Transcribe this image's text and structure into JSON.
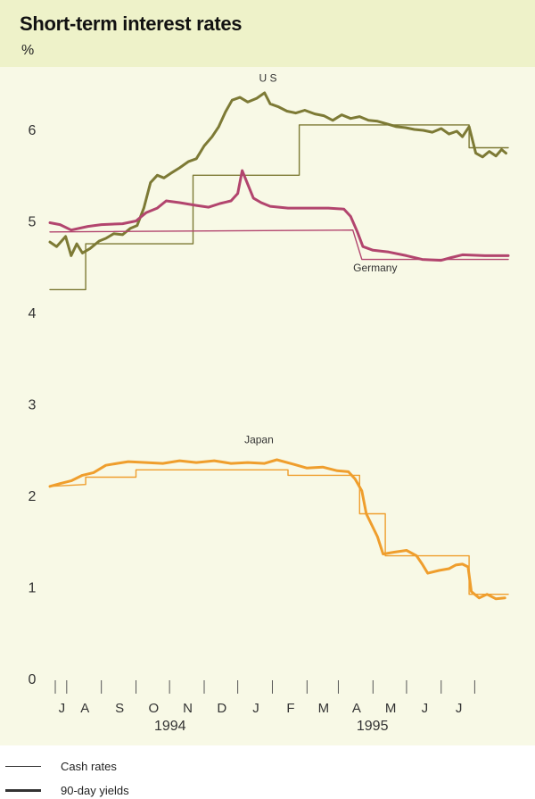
{
  "header": {
    "title": "Short-term interest rates",
    "unit": "%"
  },
  "legend": [
    {
      "label": "Cash rates",
      "style": "thin"
    },
    {
      "label": "90-day  yields",
      "style": "thick"
    }
  ],
  "colors": {
    "us": "#7d7a35",
    "germany": "#b2456e",
    "japan": "#ef9e2d",
    "axis": "#555555",
    "legend": "#333333",
    "band": "#eef2c9",
    "panel": "#f8f9e6"
  },
  "chart_data": {
    "type": "line",
    "title": "Short-term interest rates",
    "ylabel": "%",
    "ylim": [
      0,
      6.5
    ],
    "yticks": [
      "0",
      "1",
      "2",
      "3",
      "4",
      "5",
      "6"
    ],
    "xlim": [
      "1994-06-16",
      "1995-07-31"
    ],
    "month_ticks": [
      "J",
      "A",
      "S",
      "O",
      "N",
      "D",
      "J",
      "F",
      "M",
      "A",
      "M",
      "J",
      "J"
    ],
    "year_labels": [
      "1994",
      "1995"
    ],
    "series": [
      {
        "name": "US",
        "kind": "90-day yields",
        "color": "#7d7a35",
        "points": [
          [
            "1994-06-16",
            4.77
          ],
          [
            "1994-06-22",
            4.72
          ],
          [
            "1994-06-30",
            4.83
          ],
          [
            "1994-07-05",
            4.62
          ],
          [
            "1994-07-10",
            4.75
          ],
          [
            "1994-07-15",
            4.65
          ],
          [
            "1994-07-22",
            4.7
          ],
          [
            "1994-07-30",
            4.78
          ],
          [
            "1994-08-05",
            4.81
          ],
          [
            "1994-08-12",
            4.86
          ],
          [
            "1994-08-20",
            4.85
          ],
          [
            "1994-08-27",
            4.92
          ],
          [
            "1994-09-02",
            4.95
          ],
          [
            "1994-09-08",
            5.14
          ],
          [
            "1994-09-14",
            5.42
          ],
          [
            "1994-09-20",
            5.5
          ],
          [
            "1994-09-26",
            5.47
          ],
          [
            "1994-10-02",
            5.52
          ],
          [
            "1994-10-10",
            5.58
          ],
          [
            "1994-10-18",
            5.65
          ],
          [
            "1994-10-25",
            5.68
          ],
          [
            "1994-11-01",
            5.82
          ],
          [
            "1994-11-08",
            5.92
          ],
          [
            "1994-11-14",
            6.03
          ],
          [
            "1994-11-20",
            6.19
          ],
          [
            "1994-11-26",
            6.32
          ],
          [
            "1994-12-03",
            6.35
          ],
          [
            "1994-12-10",
            6.3
          ],
          [
            "1994-12-18",
            6.34
          ],
          [
            "1994-12-25",
            6.4
          ],
          [
            "1994-12-30",
            6.28
          ],
          [
            "1995-01-06",
            6.25
          ],
          [
            "1995-01-14",
            6.2
          ],
          [
            "1995-01-22",
            6.18
          ],
          [
            "1995-01-30",
            6.21
          ],
          [
            "1995-02-08",
            6.17
          ],
          [
            "1995-02-16",
            6.15
          ],
          [
            "1995-02-24",
            6.1
          ],
          [
            "1995-03-04",
            6.16
          ],
          [
            "1995-03-12",
            6.12
          ],
          [
            "1995-03-20",
            6.14
          ],
          [
            "1995-03-28",
            6.1
          ],
          [
            "1995-04-05",
            6.09
          ],
          [
            "1995-04-14",
            6.06
          ],
          [
            "1995-04-22",
            6.03
          ],
          [
            "1995-04-30",
            6.02
          ],
          [
            "1995-05-08",
            6.0
          ],
          [
            "1995-05-16",
            5.99
          ],
          [
            "1995-05-24",
            5.97
          ],
          [
            "1995-06-01",
            6.01
          ],
          [
            "1995-06-08",
            5.95
          ],
          [
            "1995-06-15",
            5.98
          ],
          [
            "1995-06-20",
            5.92
          ],
          [
            "1995-06-26",
            6.03
          ],
          [
            "1995-07-02",
            5.74
          ],
          [
            "1995-07-08",
            5.7
          ],
          [
            "1995-07-14",
            5.76
          ],
          [
            "1995-07-20",
            5.71
          ],
          [
            "1995-07-25",
            5.78
          ],
          [
            "1995-07-29",
            5.74
          ]
        ]
      },
      {
        "name": "US",
        "kind": "Cash rates",
        "color": "#7d7a35",
        "points": [
          [
            "1994-06-16",
            4.25
          ],
          [
            "1994-07-18",
            4.25
          ],
          [
            "1994-07-18",
            4.75
          ],
          [
            "1994-10-22",
            4.75
          ],
          [
            "1994-10-22",
            5.5
          ],
          [
            "1995-01-25",
            5.5
          ],
          [
            "1995-01-25",
            6.05
          ],
          [
            "1995-06-26",
            6.05
          ],
          [
            "1995-06-26",
            5.8
          ],
          [
            "1995-07-31",
            5.8
          ]
        ]
      },
      {
        "name": "Germany",
        "kind": "90-day yields",
        "color": "#b2456e",
        "points": [
          [
            "1994-06-16",
            4.98
          ],
          [
            "1994-06-25",
            4.96
          ],
          [
            "1994-07-05",
            4.9
          ],
          [
            "1994-07-20",
            4.94
          ],
          [
            "1994-08-01",
            4.96
          ],
          [
            "1994-08-20",
            4.97
          ],
          [
            "1994-09-01",
            5.0
          ],
          [
            "1994-09-10",
            5.09
          ],
          [
            "1994-09-20",
            5.14
          ],
          [
            "1994-09-28",
            5.22
          ],
          [
            "1994-10-10",
            5.2
          ],
          [
            "1994-10-25",
            5.17
          ],
          [
            "1994-11-05",
            5.15
          ],
          [
            "1994-11-15",
            5.19
          ],
          [
            "1994-11-25",
            5.22
          ],
          [
            "1994-12-01",
            5.3
          ],
          [
            "1994-12-05",
            5.55
          ],
          [
            "1994-12-10",
            5.4
          ],
          [
            "1994-12-15",
            5.25
          ],
          [
            "1994-12-22",
            5.2
          ],
          [
            "1994-12-30",
            5.16
          ],
          [
            "1995-01-15",
            5.14
          ],
          [
            "1995-02-01",
            5.14
          ],
          [
            "1995-02-20",
            5.14
          ],
          [
            "1995-03-06",
            5.13
          ],
          [
            "1995-03-12",
            5.05
          ],
          [
            "1995-03-18",
            4.88
          ],
          [
            "1995-03-23",
            4.72
          ],
          [
            "1995-04-01",
            4.68
          ],
          [
            "1995-04-15",
            4.66
          ],
          [
            "1995-05-01",
            4.62
          ],
          [
            "1995-05-15",
            4.58
          ],
          [
            "1995-06-01",
            4.57
          ],
          [
            "1995-06-10",
            4.6
          ],
          [
            "1995-06-20",
            4.63
          ],
          [
            "1995-07-10",
            4.62
          ],
          [
            "1995-07-31",
            4.62
          ]
        ]
      },
      {
        "name": "Germany",
        "kind": "Cash rates",
        "color": "#b2456e",
        "points": [
          [
            "1994-06-16",
            4.88
          ],
          [
            "1995-03-14",
            4.9
          ],
          [
            "1995-03-22",
            4.58
          ],
          [
            "1995-07-31",
            4.58
          ]
        ]
      },
      {
        "name": "Japan",
        "kind": "90-day yields",
        "color": "#ef9e2d",
        "points": [
          [
            "1994-06-16",
            2.1
          ],
          [
            "1994-06-25",
            2.13
          ],
          [
            "1994-07-05",
            2.16
          ],
          [
            "1994-07-15",
            2.22
          ],
          [
            "1994-07-25",
            2.25
          ],
          [
            "1994-08-05",
            2.33
          ],
          [
            "1994-08-15",
            2.35
          ],
          [
            "1994-08-25",
            2.37
          ],
          [
            "1994-09-10",
            2.36
          ],
          [
            "1994-09-25",
            2.35
          ],
          [
            "1994-10-10",
            2.38
          ],
          [
            "1994-10-25",
            2.36
          ],
          [
            "1994-11-10",
            2.38
          ],
          [
            "1994-11-25",
            2.35
          ],
          [
            "1994-12-10",
            2.36
          ],
          [
            "1994-12-25",
            2.35
          ],
          [
            "1995-01-05",
            2.39
          ],
          [
            "1995-01-20",
            2.34
          ],
          [
            "1995-02-01",
            2.3
          ],
          [
            "1995-02-15",
            2.31
          ],
          [
            "1995-02-28",
            2.27
          ],
          [
            "1995-03-10",
            2.26
          ],
          [
            "1995-03-16",
            2.18
          ],
          [
            "1995-03-22",
            2.05
          ],
          [
            "1995-03-26",
            1.8
          ],
          [
            "1995-04-01",
            1.65
          ],
          [
            "1995-04-05",
            1.55
          ],
          [
            "1995-04-10",
            1.36
          ],
          [
            "1995-04-20",
            1.38
          ],
          [
            "1995-05-01",
            1.4
          ],
          [
            "1995-05-10",
            1.34
          ],
          [
            "1995-05-15",
            1.25
          ],
          [
            "1995-05-20",
            1.15
          ],
          [
            "1995-05-30",
            1.18
          ],
          [
            "1995-06-08",
            1.2
          ],
          [
            "1995-06-14",
            1.24
          ],
          [
            "1995-06-20",
            1.25
          ],
          [
            "1995-06-25",
            1.22
          ],
          [
            "1995-06-28",
            0.95
          ],
          [
            "1995-07-05",
            0.88
          ],
          [
            "1995-07-12",
            0.92
          ],
          [
            "1995-07-20",
            0.87
          ],
          [
            "1995-07-28",
            0.88
          ]
        ]
      },
      {
        "name": "Japan",
        "kind": "Cash rates",
        "color": "#ef9e2d",
        "points": [
          [
            "1994-06-16",
            2.1
          ],
          [
            "1994-07-18",
            2.12
          ],
          [
            "1994-07-18",
            2.2
          ],
          [
            "1994-09-01",
            2.2
          ],
          [
            "1994-09-01",
            2.28
          ],
          [
            "1995-01-15",
            2.28
          ],
          [
            "1995-01-15",
            2.22
          ],
          [
            "1995-03-20",
            2.22
          ],
          [
            "1995-03-20",
            1.8
          ],
          [
            "1995-04-12",
            1.8
          ],
          [
            "1995-04-12",
            1.34
          ],
          [
            "1995-06-26",
            1.34
          ],
          [
            "1995-06-26",
            0.92
          ],
          [
            "1995-07-31",
            0.92
          ]
        ]
      }
    ],
    "annotations": [
      {
        "text": "U S",
        "x": "1994-12-28",
        "y": 6.52
      },
      {
        "text": "Germany",
        "x": "1995-04-03",
        "y": 4.45
      },
      {
        "text": "Japan",
        "x": "1994-12-20",
        "y": 2.57
      }
    ]
  }
}
